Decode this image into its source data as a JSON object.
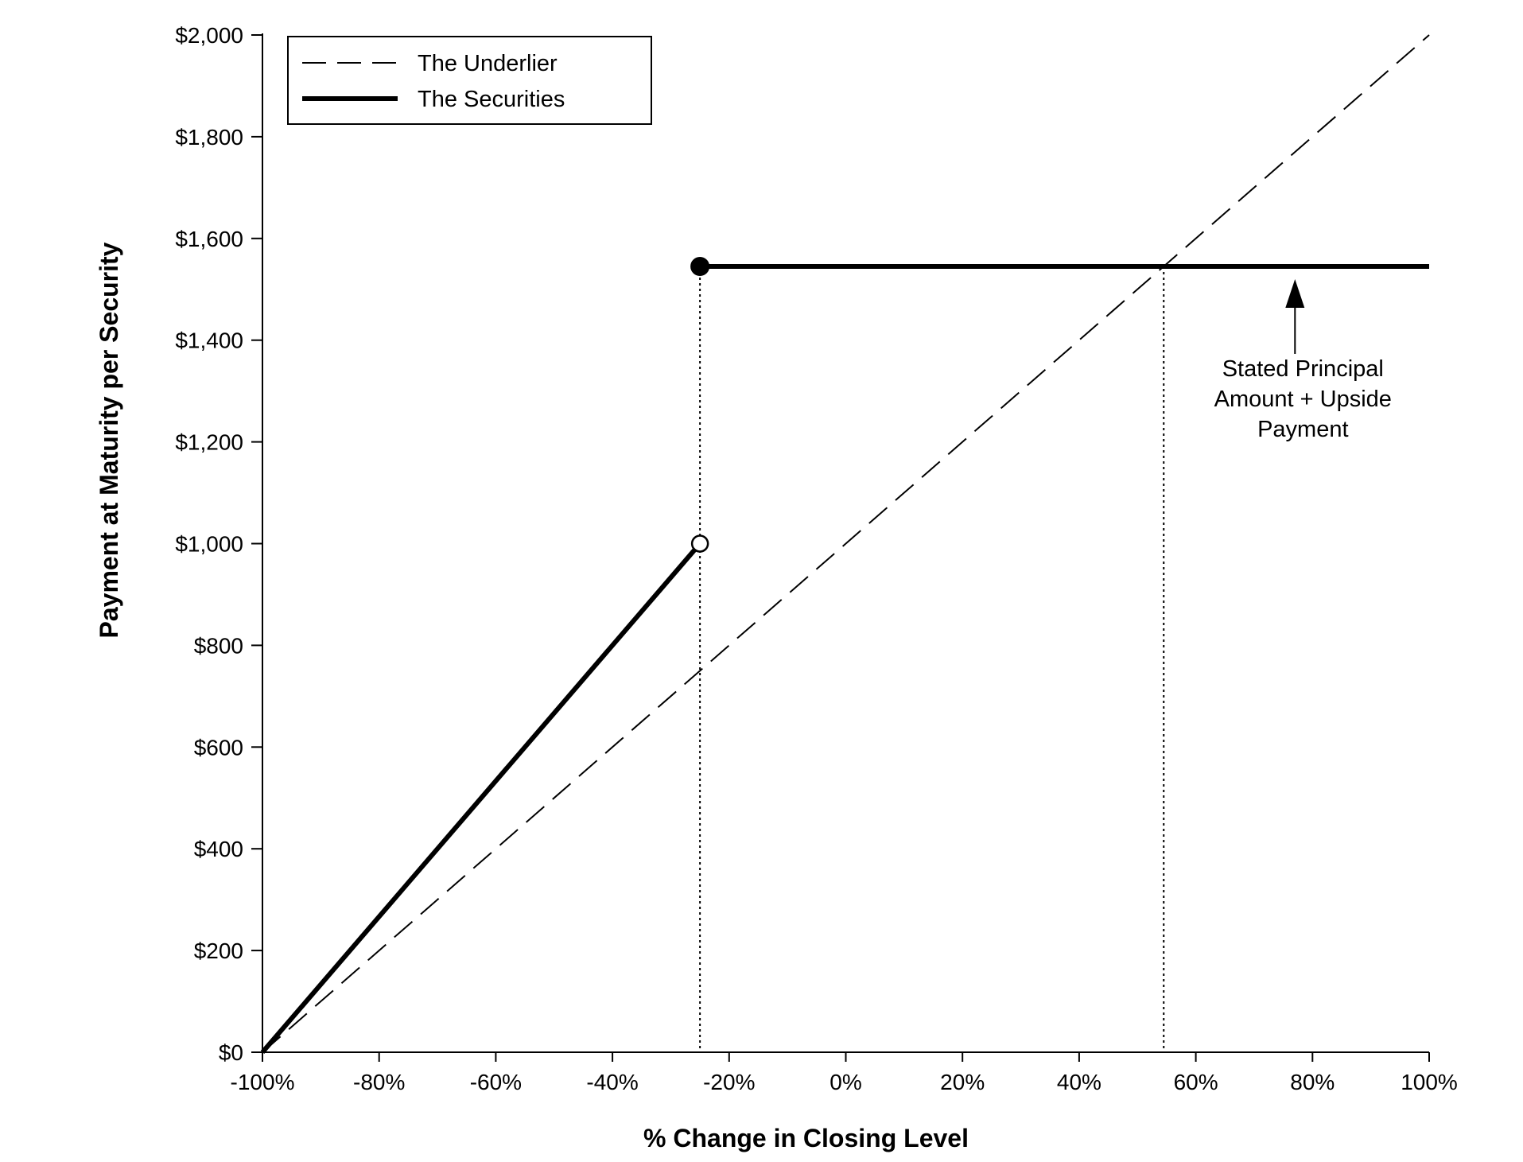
{
  "chart_data": {
    "type": "line",
    "xlabel": "% Change in Closing Level",
    "ylabel": "Payment at Maturity per Security",
    "xlim": [
      -100,
      100
    ],
    "ylim": [
      0,
      2000
    ],
    "x_ticks": [
      -100,
      -80,
      -60,
      -40,
      -20,
      0,
      20,
      40,
      60,
      80,
      100
    ],
    "x_tick_labels": [
      "-100%",
      "-80%",
      "-60%",
      "-40%",
      "-20%",
      "0%",
      "20%",
      "40%",
      "60%",
      "80%",
      "100%"
    ],
    "y_ticks": [
      0,
      200,
      400,
      600,
      800,
      1000,
      1200,
      1400,
      1600,
      1800,
      2000
    ],
    "y_tick_labels": [
      "$0",
      "$200",
      "$400",
      "$600",
      "$800",
      "$1,000",
      "$1,200",
      "$1,400",
      "$1,600",
      "$1,800",
      "$2,000"
    ],
    "grid": false,
    "legend_position": "top-left",
    "series": [
      {
        "name": "The Underlier",
        "style": "dashed",
        "color": "#000000",
        "x": [
          -100,
          100
        ],
        "y": [
          0,
          2000
        ]
      },
      {
        "name": "The Securities",
        "style": "solid-thick",
        "color": "#000000",
        "segments": [
          {
            "x": [
              -100,
              -25
            ],
            "y": [
              0,
              1000
            ],
            "end_marker": "open-circle"
          },
          {
            "x": [
              -25,
              100
            ],
            "y": [
              1545,
              1545
            ],
            "start_marker": "filled-circle"
          }
        ]
      }
    ],
    "reference_lines": [
      {
        "orientation": "vertical",
        "x": -25,
        "y_to": 1545,
        "style": "dotted"
      },
      {
        "orientation": "vertical",
        "x": 54.5,
        "y_to": 1545,
        "style": "dotted"
      }
    ],
    "annotation": {
      "lines": [
        "Stated Principal",
        "Amount + Upside",
        "Payment"
      ],
      "points_to": {
        "x": 77,
        "y": 1545
      }
    }
  }
}
